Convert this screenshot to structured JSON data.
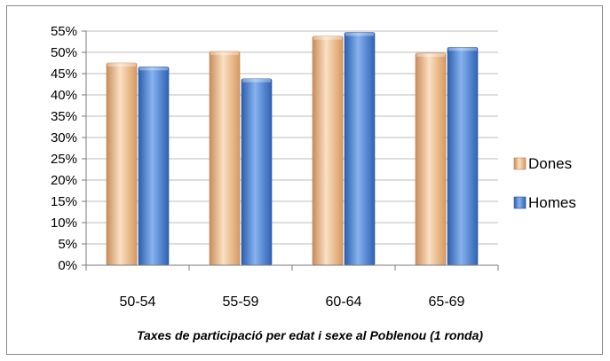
{
  "chart_data": {
    "type": "bar",
    "title": "",
    "caption": "Taxes de participació per edat i sexe al  Poblenou (1 ronda)",
    "xlabel": "",
    "ylabel": "",
    "categories": [
      "50-54",
      "55-59",
      "60-64",
      "65-69"
    ],
    "series": [
      {
        "name": "Dones",
        "values": [
          47.5,
          50.2,
          53.8,
          49.8
        ],
        "color": "#F2C08F"
      },
      {
        "name": "Homes",
        "values": [
          46.6,
          43.8,
          54.7,
          51.2
        ],
        "color": "#4A7FCF"
      }
    ],
    "ylim": [
      0,
      55
    ],
    "yticks": [
      "0%",
      "5%",
      "10%",
      "15%",
      "20%",
      "25%",
      "30%",
      "35%",
      "40%",
      "45%",
      "50%",
      "55%"
    ],
    "grid": true,
    "legend": "right"
  }
}
